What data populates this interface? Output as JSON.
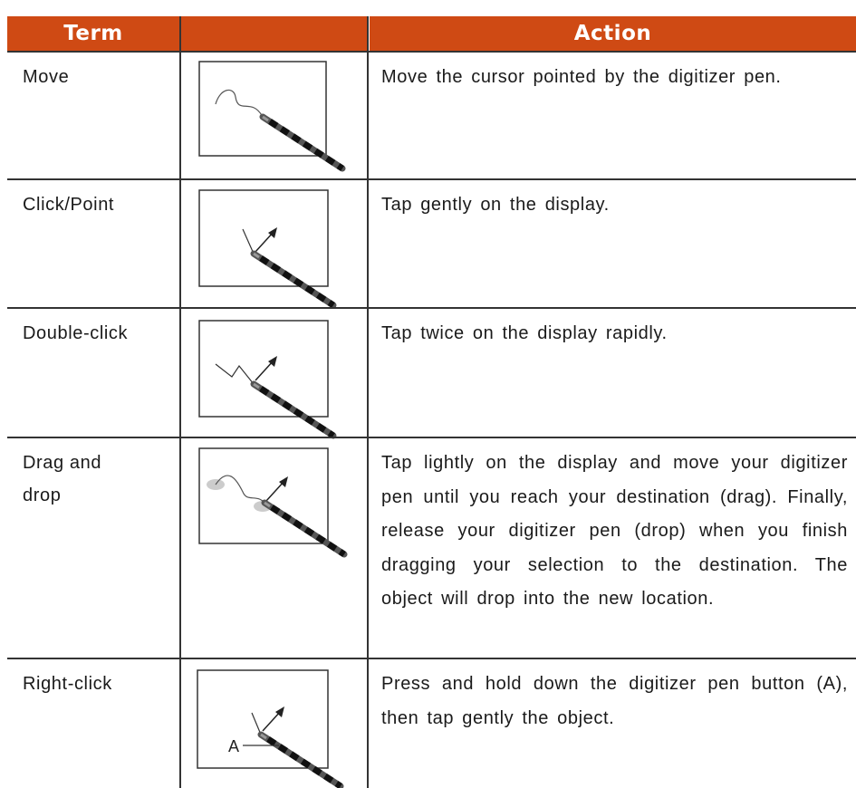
{
  "table": {
    "header": {
      "term": "Term",
      "action": "Action"
    },
    "rows": [
      {
        "term": "Move",
        "action": "Move the cursor pointed by the digitizer pen."
      },
      {
        "term": "Click/Point",
        "action": "Tap gently on the display."
      },
      {
        "term": "Double-click",
        "action": "Tap twice on the display rapidly."
      },
      {
        "term": "Drag and drop",
        "action": "Tap lightly on the display and move your digitizer pen until you reach your destination (drag). Finally, release your digitizer pen (drop) when you finish dragging your selection to the destination. The object will drop into the new location."
      },
      {
        "term": "Right-click",
        "action": "Press and hold down the digitizer pen button (A), then tap gently the object.",
        "illustration_label": "A"
      }
    ]
  }
}
